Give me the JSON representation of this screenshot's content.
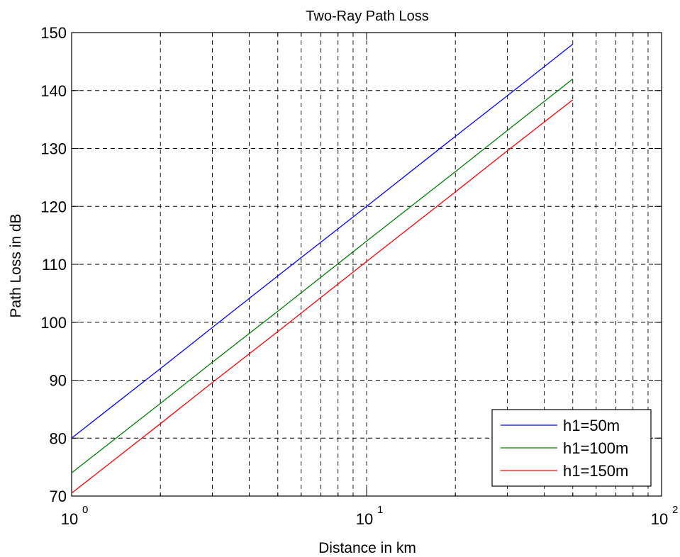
{
  "chart_data": {
    "type": "line",
    "title": "Two-Ray Path Loss",
    "xlabel": "Distance in km",
    "ylabel": "Path Loss in dB",
    "xscale": "log",
    "xlim": [
      1,
      100
    ],
    "ylim": [
      70,
      150
    ],
    "grid": true,
    "legend_position": "bottom-right",
    "x_ticks": [
      {
        "base": "10",
        "exp": "0",
        "value": 1
      },
      {
        "base": "10",
        "exp": "1",
        "value": 10
      },
      {
        "base": "10",
        "exp": "2",
        "value": 100
      }
    ],
    "y_ticks": [
      "70",
      "80",
      "90",
      "100",
      "110",
      "120",
      "130",
      "140",
      "150"
    ],
    "x": [
      1,
      2,
      3,
      5,
      10,
      20,
      30,
      50
    ],
    "series": [
      {
        "name": "h1=50m",
        "color": "#0000ff",
        "values": [
          80.0,
          92.0,
          99.1,
          108.0,
          120.0,
          132.1,
          139.1,
          148.0
        ]
      },
      {
        "name": "h1=100m",
        "color": "#008000",
        "values": [
          74.0,
          86.0,
          93.1,
          101.9,
          114.0,
          126.0,
          133.1,
          142.0
        ]
      },
      {
        "name": "h1=150m",
        "color": "#ff0000",
        "values": [
          70.5,
          82.5,
          89.6,
          98.4,
          110.5,
          122.5,
          129.6,
          138.4
        ]
      }
    ]
  }
}
